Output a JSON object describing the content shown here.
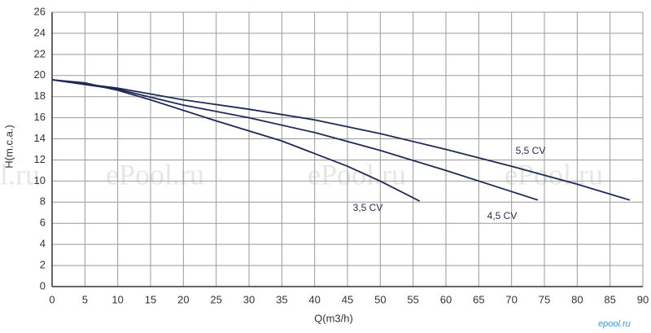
{
  "chart_data": {
    "type": "line",
    "xlabel": "Q(m3/h)",
    "ylabel": "H(m.c.a.)",
    "xlim": [
      0,
      90
    ],
    "xticks": [
      0,
      5,
      10,
      15,
      20,
      25,
      30,
      35,
      40,
      45,
      50,
      55,
      60,
      65,
      70,
      75,
      80,
      85,
      90
    ],
    "ylim": [
      0,
      26
    ],
    "yticks": [
      0,
      2,
      4,
      6,
      8,
      10,
      12,
      14,
      16,
      18,
      20,
      22,
      24,
      26
    ],
    "grid": true,
    "series": [
      {
        "name": "3,5 CV",
        "color": "#1e2a55",
        "x": [
          0,
          5,
          10,
          15,
          25,
          35,
          45,
          50,
          56
        ],
        "values": [
          19.6,
          19.3,
          18.6,
          17.7,
          15.7,
          13.8,
          11.4,
          10.0,
          8.1
        ]
      },
      {
        "name": "4,5 CV",
        "color": "#1e2a55",
        "x": [
          0,
          10,
          20,
          30,
          40,
          50,
          60,
          70,
          74
        ],
        "values": [
          19.6,
          18.7,
          17.2,
          16.0,
          14.6,
          12.9,
          11.0,
          9.0,
          8.2
        ]
      },
      {
        "name": "5,5 CV",
        "color": "#1e2a55",
        "x": [
          0,
          10,
          20,
          30,
          40,
          50,
          60,
          70,
          80,
          88
        ],
        "values": [
          19.6,
          18.8,
          17.7,
          16.8,
          15.8,
          14.5,
          13.0,
          11.4,
          9.7,
          8.2
        ]
      }
    ],
    "watermarks": [
      "l.ru",
      "ePool.ru",
      "ePool.ru",
      "ePool.ru",
      "epool.ru"
    ]
  }
}
